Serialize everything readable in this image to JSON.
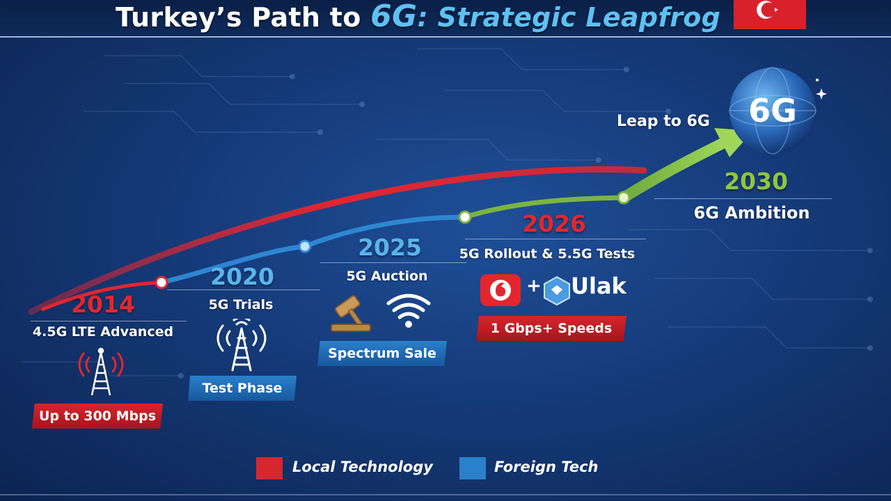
{
  "title": {
    "prefix": "Turkey’s Path to ",
    "highlight_big": "6G",
    "highlight_rest": ": Strategic Leapfrog"
  },
  "colors": {
    "local_red": "#e3262e",
    "foreign_blue": "#2b7fcb",
    "future_green": "#8ec63f",
    "background": "#153a78"
  },
  "milestones": [
    {
      "year": "2014",
      "title": "4.5G LTE Advanced",
      "badge": "Up to 300 Mbps",
      "icon": "cell-tower-icon"
    },
    {
      "year": "2020",
      "title": "5G Trials",
      "badge": "Test Phase",
      "icon": "cell-tower-icon"
    },
    {
      "year": "2025",
      "title": "5G Auction",
      "badge": "Spectrum Sale",
      "icon": "gavel-icon"
    },
    {
      "year": "2026",
      "title": "5G Rollout & 5.5G Tests",
      "badge": "1 Gbps+ Speeds",
      "icon": "vodafone-logo-icon"
    },
    {
      "year": "2030",
      "title": "6G Ambition",
      "icon": "globe-6g-icon"
    }
  ],
  "partners": {
    "plus": "+",
    "ulak": "Ulak"
  },
  "leap": {
    "label": "Leap to 6G",
    "globe_text": "6G"
  },
  "legend": [
    {
      "label": "Local Technology",
      "color": "#e3262e"
    },
    {
      "label": "Foreign Tech",
      "color": "#2b7fcb"
    }
  ]
}
